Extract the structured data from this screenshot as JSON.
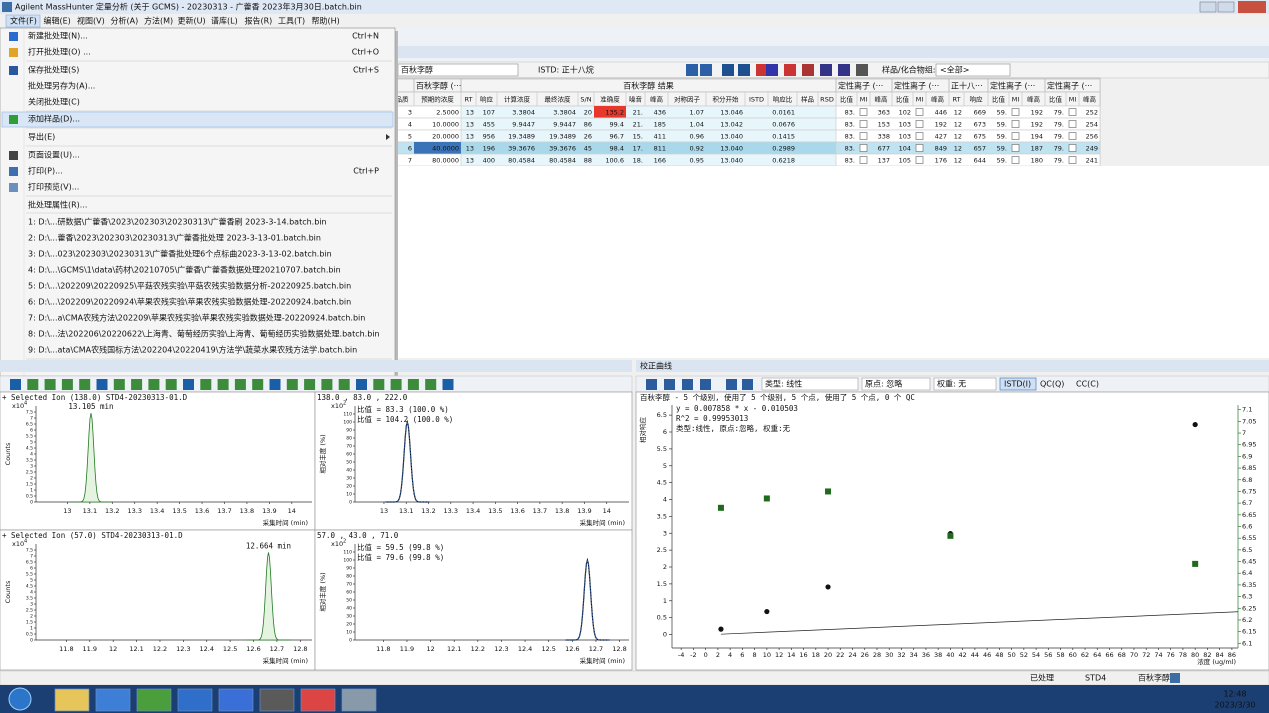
{
  "window": {
    "title": "Agilent MassHunter 定量分析 (关于 GCMS) - 20230313 - 广藿香 2023年3月30日.batch.bin"
  },
  "menu_bar": [
    "文件(F)",
    "编辑(E)",
    "视图(V)",
    "分析(A)",
    "方法(M)",
    "更新(U)",
    "谱库(L)",
    "报告(R)",
    "工具(T)",
    "帮助(H)"
  ],
  "file_menu": [
    {
      "label": "新建批处理(N)...",
      "shortcut": "Ctrl+N"
    },
    {
      "label": "打开批处理(O) ...",
      "shortcut": "Ctrl+O"
    },
    {
      "label": "保存批处理(S)",
      "shortcut": "Ctrl+S"
    },
    {
      "label": "批处理另存为(A)..."
    },
    {
      "label": "关闭批处理(C)"
    },
    {
      "label": "添加样品(D)..."
    },
    {
      "label": "导出(E)"
    },
    {
      "label": "页面设置(U)..."
    },
    {
      "label": "打印(P)...",
      "shortcut": "Ctrl+P"
    },
    {
      "label": "打印预览(V)..."
    },
    {
      "label": "批处理属性(R)..."
    },
    {
      "label": "1: D:\\...研数据\\广藿香\\2023\\202303\\20230313\\广藿香刷  2023-3-14.batch.bin"
    },
    {
      "label": "2: D:\\...藿香\\2023\\202303\\20230313\\广藿香批处理  2023-3-13-01.batch.bin"
    },
    {
      "label": "3: D:\\...023\\202303\\20230313\\广藿香批处理6个点标曲2023-3-13-02.batch.bin"
    },
    {
      "label": "4: D:\\...\\GCMS\\1\\data\\药材\\20210705\\广藿香\\广藿香数据处理20210707.batch.bin"
    },
    {
      "label": "5: D:\\...\\202209\\20220925\\平菇农残实验\\平菇农残实验数据分析-20220925.batch.bin"
    },
    {
      "label": "6: D:\\...\\202209\\20220924\\苹果农残实验\\苹果农残实验数据处理-20220924.batch.bin"
    },
    {
      "label": "7: D:\\...a\\CMA农残方法\\202209\\苹果农残实验\\苹果农残实验数据处理-20220924.batch.bin"
    },
    {
      "label": "8: D:\\...法\\202206\\20220622\\上海青、葡萄经历实验\\上海青、葡萄经历实验数据处理.batch.bin"
    },
    {
      "label": "9: D:\\...ata\\CMA农残国标方法\\202204\\20220419\\方法学\\蔬菜水果农残方法学.batch.bin"
    },
    {
      "label": "退出(X)"
    }
  ],
  "toolbar": {
    "compound": "百秋李醇",
    "istd": "ISTD: 正十八烷",
    "group_label": "样品/化合物组:",
    "group_value": "<全部>"
  },
  "table": {
    "group_headers": [
      "百秋李醇 (···",
      "百秋李醇  结果",
      "定性离子 (···",
      "定性离子 (···",
      "正十八···",
      "定性离子 (···",
      "定性离子 (···"
    ],
    "columns": [
      "品质",
      "预期的浓度",
      "RT",
      "响应",
      "计算浓度",
      "最终浓度",
      "S/N",
      "准确度",
      "噪音",
      "峰高",
      "对称因子",
      "积分开始",
      "ISTD",
      "响应比",
      "样品",
      "RSD",
      "比值",
      "MI",
      "峰高",
      "比值",
      "MI",
      "峰高",
      "RT",
      "响应",
      "比值",
      "MI",
      "峰高",
      "比值",
      "MI",
      "峰高"
    ],
    "rows": [
      [
        "3",
        "2.5000",
        "13",
        "107",
        "3.3804",
        "3.3804",
        "20",
        "135.2",
        "21.",
        "436",
        "1.07",
        "13.046",
        null,
        "0.0161",
        null,
        null,
        "83.",
        null,
        "363",
        "102",
        null,
        "446",
        "12",
        "669",
        "59.",
        null,
        "192",
        "79.",
        null,
        "252"
      ],
      [
        "4",
        "10.0000",
        "13",
        "455",
        "9.9447",
        "9.9447",
        "86",
        "99.4",
        "21.",
        "185",
        "1.04",
        "13.042",
        null,
        "0.0676",
        null,
        null,
        "83.",
        null,
        "153",
        "103",
        null,
        "192",
        "12",
        "673",
        "59.",
        null,
        "192",
        "79.",
        null,
        "254"
      ],
      [
        "5",
        "20.0000",
        "13",
        "956",
        "19.3489",
        "19.3489",
        "26",
        "96.7",
        "15.",
        "411",
        "0.96",
        "13.040",
        null,
        "0.1415",
        null,
        null,
        "83.",
        null,
        "338",
        "103",
        null,
        "427",
        "12",
        "675",
        "59.",
        null,
        "194",
        "79.",
        null,
        "256"
      ],
      [
        "6",
        "40.0000",
        "13",
        "196",
        "39.3676",
        "39.3676",
        "45",
        "98.4",
        "17.",
        "811",
        "0.92",
        "13.040",
        null,
        "0.2989",
        null,
        null,
        "83.",
        null,
        "677",
        "104",
        null,
        "849",
        "12",
        "657",
        "59.",
        null,
        "187",
        "79.",
        null,
        "249"
      ],
      [
        "7",
        "80.0000",
        "13",
        "400",
        "80.4584",
        "80.4584",
        "88",
        "100.6",
        "18.",
        "166",
        "0.95",
        "13.040",
        null,
        "0.6218",
        null,
        null,
        "83.",
        null,
        "137",
        "105",
        null,
        "176",
        "12",
        "644",
        "59.",
        null,
        "180",
        "79.",
        null,
        "241"
      ]
    ]
  },
  "chrom_panels": [
    {
      "header": "+ Selected Ion (138.0) STD4-20230313-01.D",
      "scale": "x10",
      "exp": "4",
      "ylabel": "Counts",
      "xlabel": "采集时间 (min)",
      "xlim": [
        12.86,
        14.09
      ],
      "xticks": [
        13,
        13.1,
        13.2,
        13.3,
        13.4,
        13.5,
        13.6,
        13.7,
        13.8,
        13.9,
        14
      ],
      "ylim": [
        0,
        8
      ],
      "yticks": [
        0,
        0.5,
        1,
        1.5,
        2,
        2.5,
        3,
        3.5,
        4,
        4.5,
        5,
        5.5,
        6,
        6.5,
        7,
        7.5
      ],
      "peak": {
        "x": 13.105,
        "height": 7.4,
        "label": "13.105 min"
      }
    },
    {
      "header": "138.0 , 83.0 , 222.0",
      "lines": [
        "比值 = 83.3 (100.0 %)",
        "比值 = 104.2 (100.0 %)"
      ],
      "scale": "x10",
      "exp": "2",
      "ylabel": "相对丰度 (%)",
      "xlabel": "采集时间 (min)",
      "xlim": [
        12.87,
        14.1
      ],
      "xticks": [
        13,
        13.1,
        13.2,
        13.3,
        13.4,
        13.5,
        13.6,
        13.7,
        13.8,
        13.9,
        14
      ],
      "ylim": [
        0,
        120
      ],
      "yticks": [
        0,
        10,
        20,
        30,
        40,
        50,
        60,
        70,
        80,
        90,
        100,
        110
      ],
      "peak": {
        "x": 13.105,
        "height": 100
      }
    },
    {
      "header": "+ Selected Ion (57.0) STD4-20230313-01.D",
      "scale": "x10",
      "exp": "4",
      "ylabel": "Counts",
      "xlabel": "采集时间 (min)",
      "xlim": [
        11.67,
        12.85
      ],
      "xticks": [
        11.8,
        11.9,
        12,
        12.1,
        12.2,
        12.3,
        12.4,
        12.5,
        12.6,
        12.7,
        12.8
      ],
      "ylim": [
        0,
        8
      ],
      "yticks": [
        0,
        0.5,
        1,
        1.5,
        2,
        2.5,
        3,
        3.5,
        4,
        4.5,
        5,
        5.5,
        6,
        6.5,
        7,
        7.5
      ],
      "peak": {
        "x": 12.664,
        "height": 7.3,
        "label": "12.664 min"
      }
    },
    {
      "header": "57.0 , 43.0 , 71.0",
      "lines": [
        "比值 = 59.5 (99.8 %)",
        "比值 = 79.6 (99.8 %)"
      ],
      "scale": "x10",
      "exp": "2",
      "ylabel": "相对丰度 (%)",
      "xlabel": "采集时间 (min)",
      "xlim": [
        11.68,
        12.84
      ],
      "xticks": [
        11.8,
        11.9,
        12,
        12.1,
        12.2,
        12.3,
        12.4,
        12.5,
        12.6,
        12.7,
        12.8
      ],
      "ylim": [
        0,
        120
      ],
      "yticks": [
        0,
        10,
        20,
        30,
        40,
        50,
        60,
        70,
        80,
        90,
        100,
        110
      ],
      "peak": {
        "x": 12.664,
        "height": 100
      }
    }
  ],
  "calibration": {
    "panel_title": "校正曲线",
    "type_label": "类型: 线性",
    "origin_label": "原点: 忽略",
    "weight_label": "权重: 无",
    "buttons": [
      "ISTD(I)",
      "QC(Q)",
      "CC(C)"
    ],
    "info": "百秋李醇 - 5 个级别, 使用了 5 个级别, 5 个点, 使用了 5 个点, 0 个 QC",
    "equation": "y = 0.007858 * x - 0.010503",
    "r2": "R^2 = 0.99953013",
    "desc": "类型:线性, 原点:忽略, 权重:无",
    "ylabel": "相对响应",
    "xlabel": "浓度 (ug/ml)",
    "fit": {
      "slope": 0.007858,
      "intercept": -0.010503
    },
    "xlim": [
      -5.5,
      87
    ],
    "xticks": [
      -4,
      -2,
      0,
      2,
      4,
      6,
      8,
      10,
      12,
      14,
      16,
      18,
      20,
      22,
      24,
      26,
      28,
      30,
      32,
      34,
      36,
      38,
      40,
      42,
      44,
      46,
      48,
      50,
      52,
      54,
      56,
      58,
      60,
      62,
      64,
      66,
      68,
      70,
      72,
      74,
      76,
      78,
      80,
      82,
      84,
      86
    ],
    "ylim": [
      -0.4,
      6.8
    ],
    "yticks": [
      0,
      0.5,
      1,
      1.5,
      2,
      2.5,
      3,
      3.5,
      4,
      4.5,
      5,
      5.5,
      6,
      6.5
    ],
    "y2lim": [
      6.08,
      7.12
    ],
    "y2ticks": [
      6.1,
      6.15,
      6.2,
      6.25,
      6.3,
      6.35,
      6.4,
      6.45,
      6.5,
      6.55,
      6.6,
      6.65,
      6.7,
      6.75,
      6.8,
      6.85,
      6.9,
      6.95,
      7,
      7.05,
      7.1
    ],
    "series": [
      {
        "color": "#111111",
        "x": [
          2.5,
          10,
          20,
          40,
          80
        ],
        "y": [
          0.16,
          0.68,
          1.41,
          2.99,
          6.22
        ]
      },
      {
        "color": "#1e6b1e",
        "axis": "y2",
        "x": [
          2.5,
          10,
          20,
          40,
          80
        ],
        "y": [
          6.68,
          6.72,
          6.75,
          6.56,
          6.44
        ]
      }
    ]
  },
  "status": [
    "已处理",
    "STD4",
    "百秋李醇"
  ],
  "clock": {
    "time": "12:48",
    "date": "2023/3/30"
  }
}
